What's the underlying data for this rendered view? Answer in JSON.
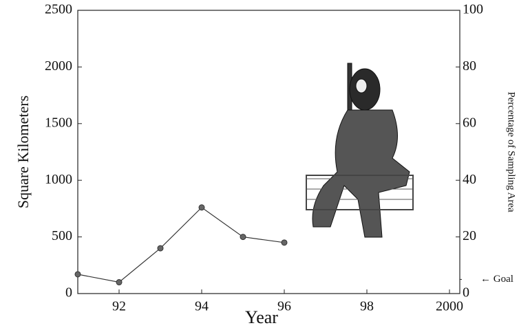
{
  "chart_data": {
    "type": "line",
    "x_label": "Year",
    "y_label": "Square Kilometers",
    "y2_label": "Percentage of Sampling Area",
    "x": [
      1991,
      1992,
      1993,
      1994,
      1995,
      1996
    ],
    "series": [
      {
        "color": "#333333",
        "values": [
          170,
          100,
          400,
          760,
          500,
          450
        ]
      }
    ],
    "xlim": [
      1991,
      2000.25
    ],
    "xticks": [
      {
        "value": 1992,
        "label": "92"
      },
      {
        "value": 1994,
        "label": "94"
      },
      {
        "value": 1996,
        "label": "96"
      },
      {
        "value": 1998,
        "label": "98"
      },
      2000
    ],
    "ylim": [
      0,
      2500
    ],
    "yticks": [
      0,
      500,
      1000,
      1500,
      2000,
      2500
    ],
    "y2lim": [
      0,
      100
    ],
    "y2ticks": [
      0,
      20,
      40,
      60,
      80,
      100
    ],
    "annotations": [
      {
        "text": "← Goal",
        "value": 5
      }
    ]
  }
}
